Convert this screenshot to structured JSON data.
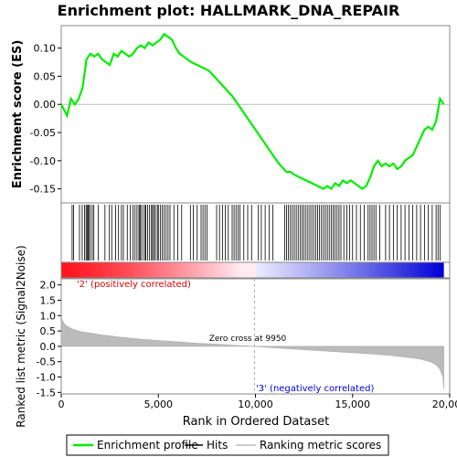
{
  "chart_data": {
    "type": "line",
    "title": "Enrichment plot: HALLMARK_DNA_REPAIR",
    "xlabel": "Rank in Ordered Dataset",
    "top_panel": {
      "ylabel": "Enrichment score (ES)",
      "ylim": [
        -0.175,
        0.14
      ],
      "yticks": [
        "0.10",
        "0.05",
        "0.00",
        "-0.05",
        "-0.10",
        "-0.15"
      ],
      "ytick_values": [
        0.1,
        0.05,
        0.0,
        -0.05,
        -0.1,
        -0.15
      ],
      "series_color": "#00ee00",
      "es_profile": {
        "x": [
          0,
          300,
          500,
          700,
          900,
          1100,
          1300,
          1500,
          1700,
          1900,
          2100,
          2300,
          2500,
          2700,
          2900,
          3100,
          3300,
          3500,
          3700,
          3900,
          4100,
          4300,
          4500,
          4700,
          4900,
          5100,
          5300,
          5500,
          5700,
          5900,
          6100,
          6300,
          6500,
          6700,
          7000,
          7300,
          7600,
          8000,
          8400,
          8800,
          9200,
          9600,
          10000,
          10400,
          10800,
          11200,
          11600,
          11800,
          12000,
          12300,
          12600,
          12900,
          13200,
          13500,
          13700,
          13900,
          14100,
          14300,
          14500,
          14700,
          14900,
          15100,
          15300,
          15500,
          15700,
          15900,
          16100,
          16300,
          16500,
          16700,
          16900,
          17100,
          17300,
          17500,
          17700,
          17900,
          18100,
          18300,
          18500,
          18700,
          18900,
          19100,
          19300,
          19400,
          19500,
          19600,
          19700
        ],
        "y": [
          0.0,
          -0.02,
          0.01,
          0.0,
          0.01,
          0.03,
          0.08,
          0.09,
          0.085,
          0.09,
          0.08,
          0.075,
          0.07,
          0.09,
          0.085,
          0.095,
          0.09,
          0.085,
          0.09,
          0.1,
          0.105,
          0.1,
          0.11,
          0.105,
          0.11,
          0.115,
          0.125,
          0.12,
          0.115,
          0.1,
          0.09,
          0.085,
          0.08,
          0.075,
          0.07,
          0.065,
          0.06,
          0.045,
          0.03,
          0.015,
          -0.005,
          -0.025,
          -0.045,
          -0.065,
          -0.085,
          -0.105,
          -0.12,
          -0.12,
          -0.125,
          -0.13,
          -0.135,
          -0.14,
          -0.145,
          -0.15,
          -0.145,
          -0.15,
          -0.14,
          -0.145,
          -0.135,
          -0.14,
          -0.135,
          -0.14,
          -0.145,
          -0.15,
          -0.145,
          -0.13,
          -0.11,
          -0.1,
          -0.11,
          -0.105,
          -0.11,
          -0.105,
          -0.115,
          -0.11,
          -0.1,
          -0.095,
          -0.09,
          -0.075,
          -0.06,
          -0.045,
          -0.04,
          -0.045,
          -0.03,
          -0.01,
          0.01,
          0.005,
          0.0
        ]
      }
    },
    "hits_panel": {
      "hit_ranks": [
        560,
        640,
        940,
        1080,
        1200,
        1280,
        1330,
        1380,
        1420,
        1500,
        1600,
        1680,
        1900,
        2250,
        2480,
        2600,
        2800,
        2950,
        3100,
        3200,
        3400,
        3550,
        3700,
        3800,
        3900,
        4000,
        4050,
        4100,
        4200,
        4300,
        4350,
        4450,
        4550,
        4650,
        4700,
        4780,
        4850,
        4950,
        5000,
        5100,
        5200,
        5300,
        5400,
        5500,
        5600,
        5800,
        6000,
        6200,
        6650,
        6800,
        7000,
        7200,
        7300,
        7400,
        7500,
        8000,
        8150,
        8300,
        8450,
        8600,
        8800,
        8900,
        9000,
        9100,
        9200,
        9400,
        9600,
        9800,
        10150,
        10300,
        10500,
        10700,
        10900,
        11500,
        11600,
        11700,
        11800,
        11900,
        12000,
        12100,
        12200,
        12300,
        12400,
        12500,
        12600,
        12700,
        12800,
        12900,
        13000,
        13100,
        13200,
        13300,
        13400,
        13500,
        13600,
        13700,
        13800,
        13900,
        14000,
        14100,
        14200,
        14300,
        14400,
        14550,
        14700,
        14850,
        15000,
        15200,
        15400,
        15600,
        15800,
        15900,
        16000,
        16100,
        16200,
        16400,
        16700,
        16900,
        17100,
        17300,
        17500,
        17700,
        17900,
        18100,
        18300,
        18500,
        18700,
        18900,
        19100,
        19300,
        19400,
        19500
      ]
    },
    "ranked_metric_panel": {
      "ylabel": "Ranked list metric (Signal2Noise)",
      "ylim": [
        -1.55,
        2.2
      ],
      "yticks": [
        "2.0",
        "1.5",
        "1.0",
        "0.5",
        "0.0",
        "-0.5",
        "-1.0",
        "-1.5"
      ],
      "ytick_values": [
        2.0,
        1.5,
        1.0,
        0.5,
        0.0,
        -0.5,
        -1.0,
        -1.5
      ],
      "xticks": [
        "0",
        "5,000",
        "10,000",
        "15,000",
        "20,000"
      ],
      "xtick_values": [
        0,
        5000,
        10000,
        15000,
        20000
      ],
      "metric_curve": {
        "x": [
          0,
          50,
          200,
          500,
          1000,
          2000,
          3000,
          4000,
          5000,
          6000,
          7000,
          8000,
          9000,
          9950,
          11000,
          12000,
          13000,
          14000,
          15000,
          16000,
          17000,
          18000,
          18500,
          19000,
          19300,
          19500,
          19650,
          19700
        ],
        "y": [
          1.05,
          0.85,
          0.7,
          0.58,
          0.48,
          0.38,
          0.3,
          0.24,
          0.19,
          0.15,
          0.1,
          0.07,
          0.03,
          0.0,
          -0.05,
          -0.09,
          -0.13,
          -0.17,
          -0.21,
          -0.25,
          -0.3,
          -0.37,
          -0.42,
          -0.5,
          -0.6,
          -0.75,
          -1.0,
          -1.4
        ]
      },
      "zero_cross_label": "Zero cross at 9950",
      "zero_cross": 9950,
      "positive_label": "'2' (positively correlated)",
      "negative_label": "'3' (negatively correlated)"
    },
    "xlim": [
      0,
      20000
    ],
    "n_ranks": 19700,
    "legend": {
      "placement": "bottom",
      "entries": [
        "Enrichment profile",
        "Hits",
        "Ranking metric scores"
      ]
    }
  }
}
